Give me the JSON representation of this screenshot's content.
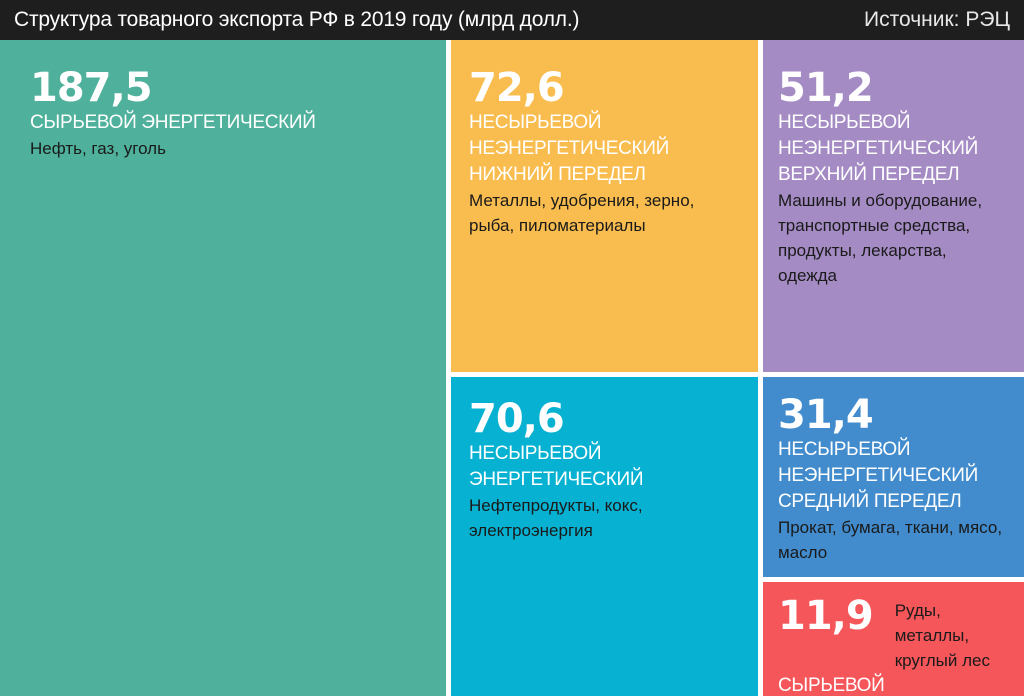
{
  "header": {
    "title": "Структура товарного экспорта РФ в 2019 году (млрд долл.)",
    "source": "Источник: РЭЦ"
  },
  "chart_data": {
    "type": "treemap",
    "title": "Структура товарного экспорта РФ в 2019 году (млрд долл.)",
    "unit": "млрд долл.",
    "source": "Источник: РЭЦ",
    "items": [
      {
        "value": 187.5,
        "value_label": "187,5",
        "category": "СЫРЬЕВОЙ ЭНЕРГЕТИЧЕСКИЙ",
        "description": "Нефть, газ, уголь",
        "color": "#4fb19c"
      },
      {
        "value": 72.6,
        "value_label": "72,6",
        "category": "НЕСЫРЬЕВОЙ НЕЭНЕРГЕТИЧЕСКИЙ НИЖНИЙ ПЕРЕДЕЛ",
        "description": "Металлы, удобрения, зерно, рыба, пиломатериалы",
        "color": "#f9bd4f"
      },
      {
        "value": 51.2,
        "value_label": "51,2",
        "category": "НЕСЫРЬЕВОЙ НЕЭНЕРГЕТИЧЕСКИЙ ВЕРХНИЙ ПЕРЕДЕЛ",
        "description": "Машины и оборудование, транспортные средства, продукты, лекарства, одежда",
        "color": "#a48bc4"
      },
      {
        "value": 70.6,
        "value_label": "70,6",
        "category": "НЕСЫРЬЕВОЙ ЭНЕРГЕТИЧЕСКИЙ",
        "description": "Нефтепродукты, кокс, электроэнергия",
        "color": "#07b1d1"
      },
      {
        "value": 31.4,
        "value_label": "31,4",
        "category": "НЕСЫРЬЕВОЙ НЕЭНЕРГЕТИЧЕСКИЙ СРЕДНИЙ ПЕРЕДЕЛ",
        "description": "Прокат, бумага, ткани, мясо, масло",
        "color": "#428ccd"
      },
      {
        "value": 11.9,
        "value_label": "11,9",
        "category": "СЫРЬЕВОЙ НЕЭНЕРГЕТИЧЕСКИЙ",
        "description": "Руды, металлы, круглый лес",
        "color": "#f5565a"
      }
    ]
  }
}
